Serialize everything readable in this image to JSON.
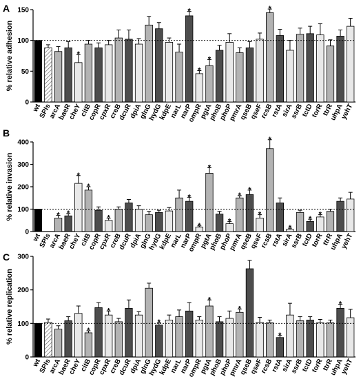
{
  "figure": {
    "colors": {
      "black": "#000000",
      "dark": "#4d4d4d",
      "mid": "#b3b3b3",
      "light": "#e8e8e8",
      "hatch": "#ffffff"
    },
    "categories": [
      "wt",
      "SPIs",
      "arcA",
      "baeR",
      "cheY",
      "citB",
      "copR",
      "cpxR",
      "creB",
      "dcuR",
      "dpiA",
      "glnG",
      "hydG",
      "kdpE",
      "narL",
      "narP",
      "ompR",
      "pgtA",
      "phoB",
      "phoP",
      "pmrA",
      "qseB",
      "qseF",
      "rcsB",
      "rstA",
      "sirA",
      "ssrB",
      "tctD",
      "torR",
      "ttrR",
      "uhpA",
      "yehT"
    ],
    "bar_styles": [
      "black",
      "hatch",
      "mid",
      "dark",
      "light",
      "mid",
      "dark",
      "light",
      "mid",
      "dark",
      "light",
      "mid",
      "dark",
      "light",
      "mid",
      "dark",
      "light",
      "mid",
      "dark",
      "light",
      "mid",
      "dark",
      "light",
      "mid",
      "dark",
      "light",
      "mid",
      "dark",
      "light",
      "mid",
      "dark",
      "light"
    ]
  },
  "chart_data": [
    {
      "type": "bar",
      "panel": "A",
      "ylabel": "% relative adhesion",
      "ylim": [
        0,
        150
      ],
      "yticks": [
        0,
        50,
        100,
        150
      ],
      "reference_line": 100,
      "values": [
        100,
        88,
        82,
        88,
        64,
        94,
        88,
        93,
        104,
        102,
        94,
        125,
        119,
        97,
        81,
        140,
        46,
        59,
        84,
        97,
        80,
        88,
        102,
        145,
        108,
        84,
        110,
        111,
        109,
        91,
        107,
        123
      ],
      "errors": [
        0,
        5,
        8,
        10,
        13,
        6,
        8,
        7,
        13,
        15,
        9,
        14,
        10,
        7,
        13,
        7,
        5,
        10,
        8,
        14,
        8,
        10,
        10,
        6,
        10,
        16,
        10,
        12,
        18,
        10,
        10,
        13
      ],
      "significant": [
        "cheY",
        "ompR",
        "pgtA",
        "narP",
        "rcsB"
      ]
    },
    {
      "type": "bar",
      "panel": "B",
      "ylabel": "% relative invasion",
      "ylim": [
        0,
        400
      ],
      "yticks": [
        0,
        100,
        200,
        300,
        400
      ],
      "reference_line": 100,
      "values": [
        100,
        0,
        60,
        70,
        215,
        185,
        95,
        50,
        100,
        128,
        100,
        75,
        85,
        92,
        150,
        135,
        20,
        260,
        78,
        35,
        150,
        165,
        60,
        370,
        128,
        10,
        85,
        45,
        65,
        90,
        135,
        145
      ],
      "errors": [
        0,
        0,
        12,
        10,
        35,
        15,
        15,
        10,
        10,
        15,
        15,
        15,
        10,
        15,
        35,
        18,
        5,
        25,
        12,
        10,
        10,
        20,
        15,
        40,
        22,
        5,
        10,
        10,
        10,
        10,
        15,
        30
      ],
      "significant": [
        "arcA",
        "baeR",
        "cheY",
        "citB",
        "cpxR",
        "narP",
        "ompR",
        "pgtA",
        "phoP",
        "pmrA",
        "qseB",
        "qseF",
        "rcsB",
        "sirA",
        "tctD",
        "torR"
      ]
    },
    {
      "type": "bar",
      "panel": "C",
      "ylabel": "% relative replication",
      "ylim": [
        0,
        300
      ],
      "yticks": [
        0,
        100,
        200,
        300
      ],
      "reference_line": 100,
      "values": [
        100,
        103,
        83,
        108,
        130,
        72,
        147,
        125,
        105,
        145,
        125,
        205,
        95,
        110,
        120,
        137,
        110,
        152,
        105,
        115,
        133,
        263,
        103,
        102,
        58,
        125,
        108,
        110,
        102,
        102,
        145,
        117
      ],
      "errors": [
        0,
        10,
        10,
        12,
        22,
        6,
        15,
        12,
        10,
        25,
        10,
        15,
        8,
        15,
        20,
        25,
        10,
        18,
        15,
        22,
        10,
        25,
        15,
        8,
        6,
        35,
        12,
        10,
        10,
        8,
        12,
        25
      ],
      "significant": [
        "citB",
        "cpxR",
        "hydG",
        "pgtA",
        "pmrA",
        "rstA",
        "uhpA"
      ]
    }
  ]
}
